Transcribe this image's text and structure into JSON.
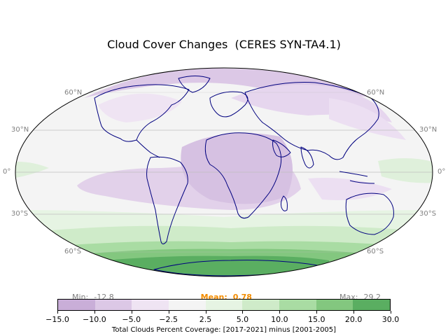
{
  "title": "Cloud Cover Changes  (CERES SYN-TA4.1)",
  "lat_labels": [
    "60°N",
    "30°N",
    "0°",
    "30°S",
    "60°S"
  ],
  "stats": {
    "min_label": "Min:",
    "min_value": "-12.8",
    "mean_label": "Mean:",
    "mean_value": "0.78",
    "max_label": "Max:",
    "max_value": "29.2"
  },
  "colorbar": {
    "ticks": [
      "−15.0",
      "−10.0",
      "−5.0",
      "−2.5",
      "2.5",
      "5.0",
      "10.0",
      "15.0",
      "20.0",
      "30.0"
    ],
    "colors": [
      "#c9aed8",
      "#dcc8e6",
      "#efe4f3",
      "#f4f4f4",
      "#e6f4e3",
      "#cfebc9",
      "#a9dca3",
      "#83c77f",
      "#5aae61"
    ],
    "label": "Total Clouds Percent Coverage: [2017-2021] minus [2001-2005]"
  },
  "colors": {
    "ocean_bg": "#f4f4f4",
    "coast": "#00007f",
    "grid": "#bfbfbf"
  }
}
